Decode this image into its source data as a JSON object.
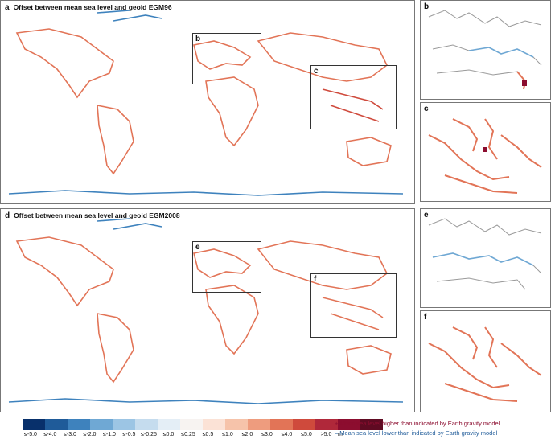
{
  "panels": {
    "a": {
      "letter": "a",
      "title": "Offset between mean sea level and geoid EGM96"
    },
    "d": {
      "letter": "d",
      "title": "Offset between mean sea level and geoid EGM2008"
    }
  },
  "insets": {
    "b": "b",
    "c": "c",
    "e": "e",
    "f": "f"
  },
  "legend": {
    "colors": [
      "#08306b",
      "#1f5b99",
      "#3e82bd",
      "#6fa8d4",
      "#9cc5e4",
      "#c5dcee",
      "#e4eef6",
      "#f7f3f1",
      "#fbe2d6",
      "#f6c3aa",
      "#ee9c7e",
      "#e27457",
      "#cf4a3c",
      "#b0283a",
      "#8c0d2f",
      "#5f0a22"
    ],
    "tick_labels": [
      "≤-5.0",
      "≤-4.0",
      "≤-3.0",
      "≤-2.0",
      "≤-1.0",
      "≤-0.5",
      "≤-0.25",
      "≤0.0",
      "≤0.25",
      "≤0.5",
      "≤1.0",
      "≤2.0",
      "≤3.0",
      "≤4.0",
      "≤5.0",
      ">5.0"
    ],
    "unit": "m"
  },
  "notes": {
    "higher": "+ Mean sea level higher than indicated by Earth gravity model",
    "lower": "– Mean sea level lower than indicated by Earth gravity model",
    "higher_color": "#8c0d2f",
    "lower_color": "#1f5b99"
  },
  "colors": {
    "land_outline": "#9a9a9a",
    "positive": "#e27457",
    "negative": "#3e82bd"
  }
}
